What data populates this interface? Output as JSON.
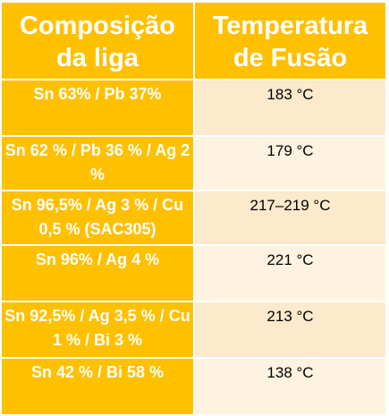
{
  "table": {
    "headers": {
      "composition": "Composição da liga",
      "temperature": "Temperatura de Fusão"
    },
    "rows": [
      {
        "composition": "Sn 63% / Pb 37%",
        "temperature": "183 °C"
      },
      {
        "composition": "Sn 62 % / Pb 36 % / Ag 2 %",
        "temperature": "179 °C"
      },
      {
        "composition": "Sn 96,5% / Ag 3 % / Cu 0,5 % (SAC305)",
        "temperature": "217–219 °C"
      },
      {
        "composition": "Sn 96% / Ag 4 %",
        "temperature": "221 °C"
      },
      {
        "composition": "Sn 92,5% / Ag 3,5 % / Cu 1 % / Bi 3 %",
        "temperature": "213 °C"
      },
      {
        "composition": "Sn 42 % / Bi 58 %",
        "temperature": "138 °C"
      }
    ]
  },
  "colors": {
    "header_bg": "#ffc000",
    "composition_bg": "#ffc000",
    "temperature_bg_odd": "#fde9cc",
    "temperature_bg_even": "#fef3e0",
    "border": "#ffffff"
  }
}
